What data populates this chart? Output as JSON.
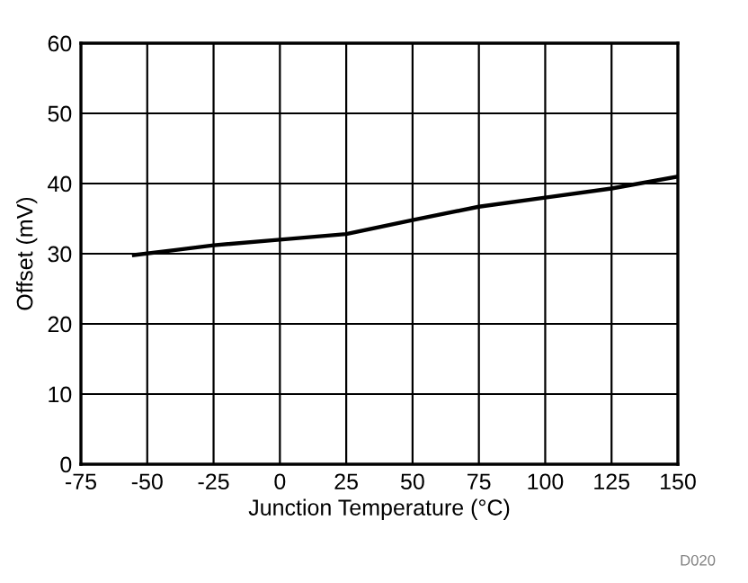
{
  "chart_data": {
    "type": "line",
    "xlabel": "Junction Temperature (°C)",
    "ylabel": "Offset (mV)",
    "x": [
      -55,
      -40,
      -25,
      0,
      25,
      50,
      75,
      100,
      125,
      150
    ],
    "series": [
      {
        "color": "#000000",
        "values": [
          29.8,
          30.5,
          31.2,
          32.0,
          32.8,
          34.8,
          36.7,
          38.0,
          39.3,
          41.0
        ]
      }
    ],
    "xlim": [
      -75,
      150
    ],
    "xticks": [
      -75,
      -50,
      -25,
      0,
      25,
      50,
      75,
      100,
      125,
      150
    ],
    "ylim": [
      0,
      60
    ],
    "yticks": [
      0,
      10,
      20,
      30,
      40,
      50,
      60
    ],
    "grid": true,
    "legend": false,
    "marker": "none",
    "line_style": "solid",
    "annotations": [
      "D020"
    ]
  }
}
